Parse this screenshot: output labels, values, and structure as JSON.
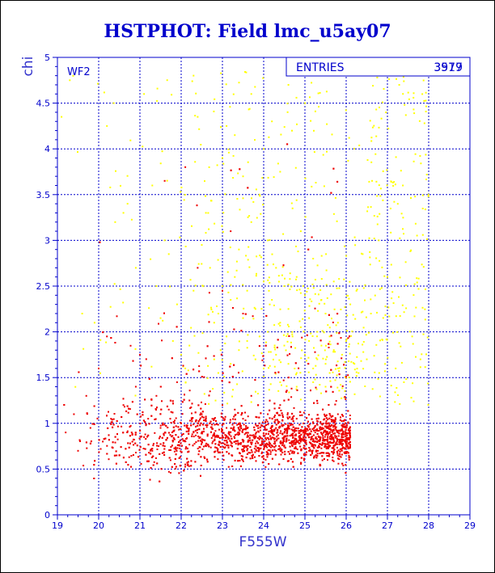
{
  "colors": {
    "frame": "#0000cc",
    "grid": "#0000cc",
    "text": "#0000cc",
    "series_yellow": "#ffff00",
    "series_red": "#ee0000",
    "border": "#000000"
  },
  "stats_box": {
    "label": "ENTRIES",
    "value": "3979",
    "value_overprint": "3517"
  },
  "chart_data": {
    "type": "scatter",
    "title": "HSTPHOT: Field lmc_u5ay07",
    "panel_label": "WF2",
    "xlabel": "F555W",
    "ylabel": "chi",
    "xlim": [
      19,
      29
    ],
    "ylim": [
      0,
      5
    ],
    "x_ticks": [
      19,
      20,
      21,
      22,
      23,
      24,
      25,
      26,
      27,
      28,
      29
    ],
    "y_ticks": [
      0,
      0.5,
      1,
      1.5,
      2,
      2.5,
      3,
      3.5,
      4,
      4.5,
      5
    ],
    "x_tick_labels": [
      "19",
      "20",
      "21",
      "22",
      "23",
      "24",
      "25",
      "26",
      "27",
      "28",
      "29"
    ],
    "y_tick_labels": [
      "0",
      "0.5",
      "1",
      "1.5",
      "2",
      "2.5",
      "3",
      "3.5",
      "4",
      "4.5",
      "5"
    ],
    "grid": true,
    "series": [
      {
        "color": "yellow",
        "points": [
          [
            19.1,
            4.35
          ],
          [
            19.3,
            4.75
          ],
          [
            19.6,
            2.2
          ],
          [
            19.9,
            2.1
          ],
          [
            20.2,
            4.25
          ],
          [
            20.4,
            3.2
          ],
          [
            20.6,
            3.3
          ],
          [
            20.7,
            3.4
          ],
          [
            20.9,
            2.7
          ],
          [
            21.1,
            4.6
          ],
          [
            21.3,
            3.6
          ],
          [
            21.4,
            2.5
          ],
          [
            21.5,
            2.15
          ],
          [
            21.6,
            3.0
          ],
          [
            21.7,
            2.85
          ],
          [
            21.8,
            1.9
          ],
          [
            21.9,
            2.3
          ],
          [
            22.0,
            1.75
          ],
          [
            22.1,
            1.6
          ],
          [
            22.2,
            1.85
          ],
          [
            22.3,
            4.8
          ],
          [
            22.3,
            2.45
          ],
          [
            22.4,
            4.35
          ],
          [
            22.5,
            2.95
          ],
          [
            22.6,
            3.3
          ],
          [
            22.7,
            2.7
          ],
          [
            22.8,
            2.1
          ],
          [
            22.8,
            1.7
          ],
          [
            22.9,
            2.2
          ],
          [
            22.9,
            1.55
          ],
          [
            23.0,
            3.9
          ],
          [
            23.0,
            2.5
          ],
          [
            23.1,
            4.25
          ],
          [
            23.1,
            1.95
          ],
          [
            23.2,
            2.35
          ],
          [
            23.2,
            1.65
          ],
          [
            23.3,
            4.15
          ],
          [
            23.3,
            2.6
          ],
          [
            23.4,
            1.8
          ],
          [
            23.4,
            2.9
          ],
          [
            23.5,
            3.7
          ],
          [
            23.5,
            2.15
          ],
          [
            23.6,
            1.9
          ],
          [
            23.6,
            2.45
          ],
          [
            23.7,
            4.6
          ],
          [
            23.7,
            3.2
          ],
          [
            23.8,
            1.7
          ],
          [
            23.8,
            2.25
          ],
          [
            23.9,
            3.5
          ],
          [
            23.9,
            1.95
          ],
          [
            24.0,
            4.0
          ],
          [
            24.0,
            2.55
          ],
          [
            24.0,
            1.6
          ],
          [
            24.1,
            2.0
          ],
          [
            24.1,
            3.0
          ],
          [
            24.2,
            4.3
          ],
          [
            24.2,
            2.35
          ],
          [
            24.3,
            1.75
          ],
          [
            24.3,
            2.7
          ],
          [
            24.4,
            3.75
          ],
          [
            24.4,
            2.1
          ],
          [
            24.5,
            1.85
          ],
          [
            24.5,
            2.5
          ],
          [
            24.6,
            4.7
          ],
          [
            24.6,
            1.65
          ],
          [
            24.6,
            2.25
          ],
          [
            24.7,
            3.35
          ],
          [
            24.7,
            1.95
          ],
          [
            24.8,
            2.6
          ],
          [
            24.8,
            1.55
          ],
          [
            24.9,
            2.05
          ],
          [
            24.9,
            3.1
          ],
          [
            25.0,
            1.75
          ],
          [
            25.0,
            2.4
          ],
          [
            25.0,
            4.5
          ],
          [
            25.1,
            1.9
          ],
          [
            25.1,
            2.15
          ],
          [
            25.2,
            1.6
          ],
          [
            25.2,
            2.8
          ],
          [
            25.3,
            2.0
          ],
          [
            25.3,
            1.7
          ],
          [
            25.4,
            2.35
          ],
          [
            25.4,
            1.85
          ],
          [
            25.5,
            1.65
          ],
          [
            25.5,
            2.2
          ],
          [
            25.6,
            1.95
          ],
          [
            25.6,
            1.55
          ],
          [
            25.7,
            2.55
          ],
          [
            25.7,
            1.8
          ],
          [
            25.8,
            1.6
          ],
          [
            25.8,
            2.1
          ],
          [
            25.9,
            1.75
          ],
          [
            26.0,
            1.9
          ],
          [
            26.0,
            1.5
          ],
          [
            26.1,
            2.3
          ],
          [
            26.2,
            1.65
          ],
          [
            26.3,
            1.55
          ],
          [
            26.4,
            2.85
          ],
          [
            26.5,
            1.7
          ],
          [
            26.6,
            2.2
          ],
          [
            26.8,
            1.55
          ],
          [
            27.0,
            2.6
          ],
          [
            27.2,
            1.6
          ],
          [
            27.4,
            1.45
          ],
          [
            27.6,
            1.95
          ],
          [
            27.8,
            1.7
          ],
          [
            24.4,
            1.45
          ],
          [
            24.8,
            1.4
          ],
          [
            25.2,
            1.45
          ],
          [
            25.5,
            1.4
          ]
        ]
      },
      {
        "color": "red",
        "points": [
          [
            19.2,
            0.9
          ],
          [
            19.4,
            1.1
          ],
          [
            19.5,
            0.7
          ],
          [
            19.7,
            1.3
          ],
          [
            19.8,
            0.95
          ],
          [
            20.0,
            1.6
          ],
          [
            20.1,
            0.8
          ],
          [
            20.2,
            1.95
          ],
          [
            20.3,
            1.05
          ],
          [
            20.5,
            0.65
          ],
          [
            20.6,
            1.2
          ],
          [
            20.8,
            0.9
          ],
          [
            20.9,
            1.4
          ],
          [
            21.0,
            1.75
          ],
          [
            21.1,
            0.85
          ],
          [
            21.2,
            1.05
          ],
          [
            21.3,
            0.7
          ],
          [
            21.4,
            1.3
          ],
          [
            21.5,
            0.95
          ],
          [
            21.6,
            3.65
          ],
          [
            21.7,
            1.15
          ],
          [
            21.8,
            0.8
          ],
          [
            21.9,
            1.45
          ],
          [
            22.0,
            1.0
          ],
          [
            22.1,
            3.8
          ],
          [
            22.2,
            1.25
          ],
          [
            22.3,
            0.9
          ],
          [
            22.4,
            2.7
          ],
          [
            22.5,
            1.1
          ],
          [
            22.6,
            0.75
          ],
          [
            22.7,
            1.35
          ],
          [
            22.8,
            1.05
          ],
          [
            22.9,
            0.85
          ],
          [
            23.0,
            2.45
          ],
          [
            23.0,
            1.2
          ],
          [
            23.1,
            0.95
          ],
          [
            23.2,
            3.1
          ],
          [
            23.2,
            0.8
          ],
          [
            23.3,
            1.15
          ],
          [
            23.4,
            0.9
          ],
          [
            23.5,
            2.2
          ],
          [
            23.5,
            1.05
          ],
          [
            23.6,
            0.85
          ],
          [
            23.7,
            1.3
          ],
          [
            23.8,
            0.75
          ],
          [
            23.9,
            1.0
          ],
          [
            24.0,
            0.8
          ],
          [
            24.1,
            1.1
          ],
          [
            24.2,
            0.9
          ],
          [
            24.3,
            0.7
          ],
          [
            24.4,
            1.2
          ],
          [
            24.5,
            0.85
          ],
          [
            24.6,
            0.95
          ],
          [
            24.7,
            0.75
          ],
          [
            24.8,
            1.05
          ],
          [
            24.9,
            0.8
          ],
          [
            25.0,
            0.9
          ],
          [
            25.1,
            0.7
          ],
          [
            25.2,
            1.0
          ],
          [
            25.3,
            0.8
          ],
          [
            25.4,
            0.95
          ],
          [
            25.5,
            0.75
          ],
          [
            25.6,
            0.85
          ],
          [
            25.7,
            0.7
          ],
          [
            25.8,
            0.9
          ],
          [
            25.9,
            0.8
          ],
          [
            26.0,
            0.75
          ],
          [
            26.1,
            0.85
          ],
          [
            26.0,
            0.95
          ],
          [
            25.8,
            1.1
          ]
        ]
      }
    ]
  }
}
